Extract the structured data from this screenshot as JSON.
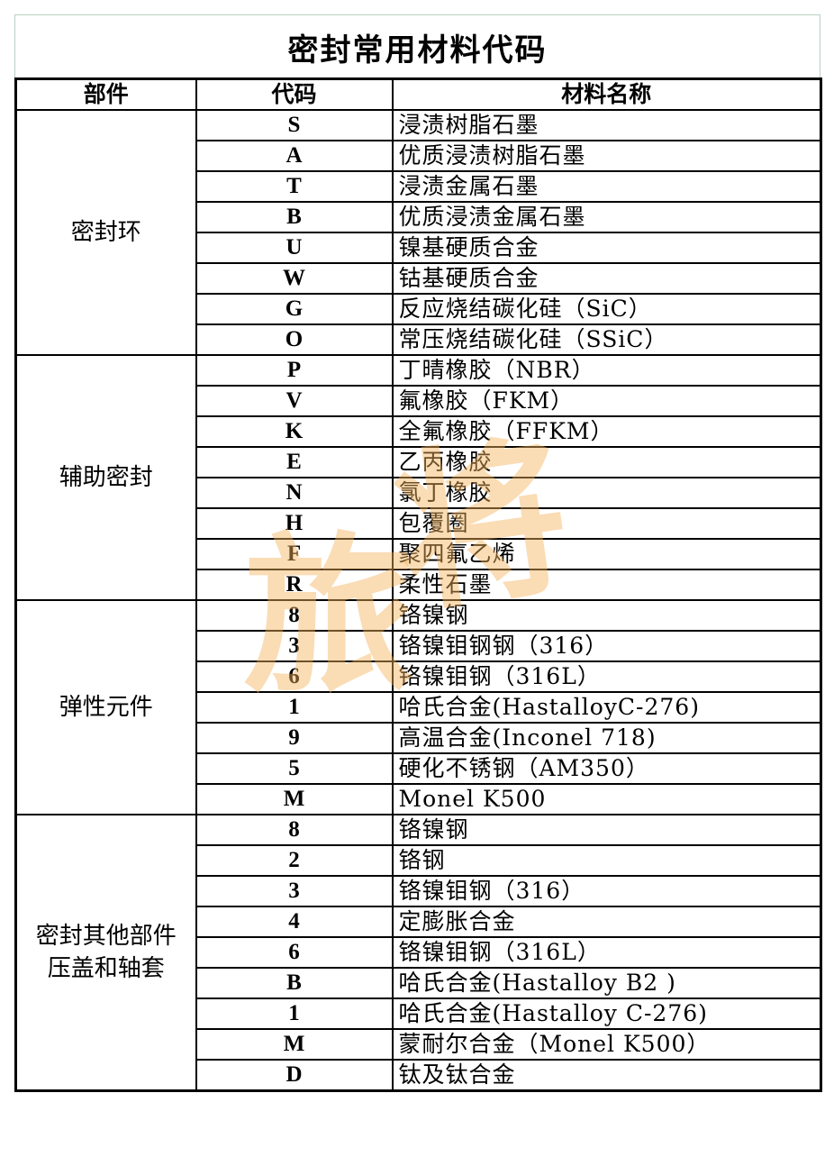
{
  "title": "密封常用材料代码",
  "headers": {
    "part": "部件",
    "code": "代码",
    "name": "材料名称"
  },
  "watermark": "旅将",
  "groups": [
    {
      "part": "密封环",
      "rows": [
        {
          "code": "S",
          "name": "浸渍树脂石墨"
        },
        {
          "code": "A",
          "name": "优质浸渍树脂石墨"
        },
        {
          "code": "T",
          "name": "浸渍金属石墨"
        },
        {
          "code": "B",
          "name": "优质浸渍金属石墨"
        },
        {
          "code": "U",
          "name": "镍基硬质合金"
        },
        {
          "code": "W",
          "name": "钴基硬质合金"
        },
        {
          "code": "G",
          "name": "反应烧结碳化硅（SiC）"
        },
        {
          "code": "O",
          "name": "常压烧结碳化硅（SSiC）"
        }
      ]
    },
    {
      "part": "辅助密封",
      "rows": [
        {
          "code": "P",
          "name": "丁晴橡胶（NBR）"
        },
        {
          "code": "V",
          "name": "氟橡胶（FKM）"
        },
        {
          "code": "K",
          "name": "全氟橡胶（FFKM）"
        },
        {
          "code": "E",
          "name": "乙丙橡胶"
        },
        {
          "code": "N",
          "name": "氯丁橡胶"
        },
        {
          "code": "H",
          "name": "包覆圈"
        },
        {
          "code": "F",
          "name": "聚四氟乙烯"
        },
        {
          "code": "R",
          "name": "柔性石墨"
        }
      ]
    },
    {
      "part": "弹性元件",
      "rows": [
        {
          "code": "8",
          "name": "铬镍钢"
        },
        {
          "code": "3",
          "name": "铬镍钼钢钢（316）"
        },
        {
          "code": "6",
          "name": "铬镍钼钢（316L）"
        },
        {
          "code": "1",
          "name": "哈氏合金(HastalloyC-276)"
        },
        {
          "code": "9",
          "name": "高温合金(Inconel 718)"
        },
        {
          "code": "5",
          "name": "硬化不锈钢（AM350）"
        },
        {
          "code": "M",
          "name": "Monel K500"
        }
      ]
    },
    {
      "part": "密封其他部件\n压盖和轴套",
      "part_line1": "密封其他部件",
      "part_line2": "压盖和轴套",
      "rows": [
        {
          "code": "8",
          "name": "铬镍钢"
        },
        {
          "code": "2",
          "name": "铬钢"
        },
        {
          "code": "3",
          "name": "铬镍钼钢（316）"
        },
        {
          "code": "4",
          "name": "定膨胀合金"
        },
        {
          "code": "6",
          "name": "铬镍钼钢（316L）"
        },
        {
          "code": "B",
          "name": "哈氏合金(Hastalloy B2 )"
        },
        {
          "code": "1",
          "name": "哈氏合金(Hastalloy C-276)"
        },
        {
          "code": "M",
          "name": "蒙耐尔合金（Monel K500）"
        },
        {
          "code": "D",
          "name": "钛及钛合金"
        }
      ]
    }
  ]
}
